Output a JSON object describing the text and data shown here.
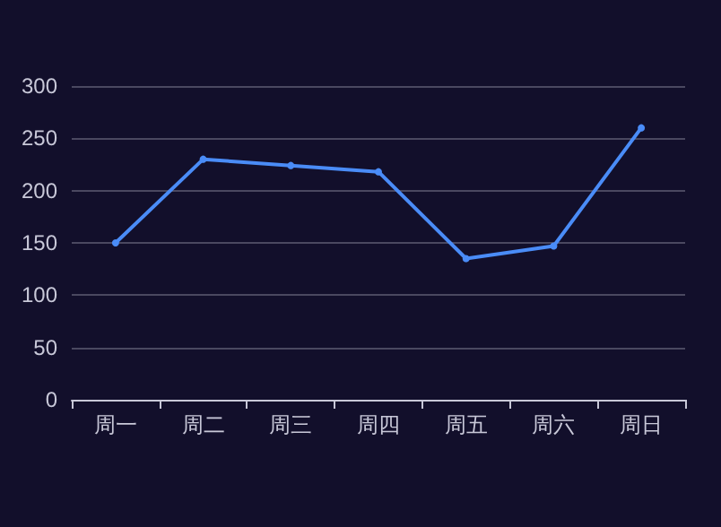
{
  "chart_data": {
    "type": "line",
    "categories": [
      "周一",
      "周二",
      "周三",
      "周四",
      "周五",
      "周六",
      "周日"
    ],
    "series": [
      {
        "color": "#4a8cf7",
        "values": [
          150,
          230,
          224,
          218,
          135,
          147,
          260
        ]
      }
    ],
    "ylim": [
      0,
      300
    ],
    "yticks": [
      0,
      50,
      100,
      150,
      200,
      250,
      300
    ],
    "grid": "y",
    "marker": "circle",
    "line_style": "solid"
  }
}
